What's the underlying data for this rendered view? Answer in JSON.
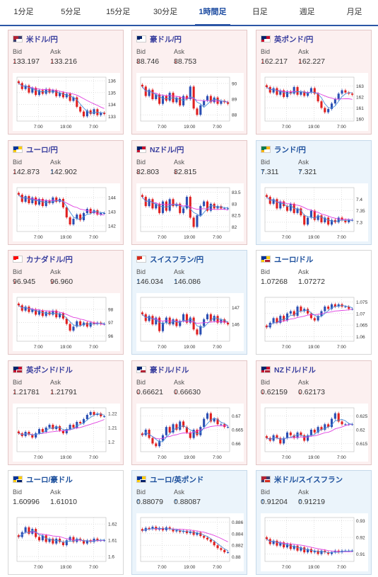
{
  "tabs": [
    "1分足",
    "5分足",
    "15分足",
    "30分足",
    "1時間足",
    "日足",
    "週足",
    "月足"
  ],
  "active_tab": 4,
  "labels": {
    "bid": "Bid",
    "ask": "Ask"
  },
  "colors": {
    "up_candle": "#2b4fb3",
    "down_candle": "#e02020",
    "ma_pink": "#e040e0",
    "ma_blue": "#4a90d9",
    "arrow_down": "#d8302f",
    "arrow_up": "#1f6fc6"
  },
  "pairs": [
    {
      "name": "米ドル/円",
      "theme": "pink",
      "flag": "us-jp-flag",
      "bid": "133.197",
      "ask": "133.216",
      "bid_dir": "down",
      "ask_dir": "down",
      "chart_data": {
        "type": "candlestick",
        "x_ticks": [
          "7:00",
          "19:00",
          "7:00"
        ],
        "y_ticks": [
          "136",
          "135",
          "134",
          "133"
        ],
        "ylim": [
          132.6,
          136.3
        ],
        "closes": [
          135.8,
          135.3,
          135.6,
          135.0,
          135.4,
          134.8,
          135.2,
          134.9,
          135.3,
          135.0,
          135.2,
          134.7,
          135.0,
          134.6,
          134.9,
          134.3,
          134.6,
          133.8,
          133.4,
          133.0,
          133.5,
          133.2,
          133.6,
          133.1,
          133.3,
          133.2
        ]
      }
    },
    {
      "name": "豪ドル/円",
      "theme": "pink",
      "flag": "au-jp-flag",
      "bid": "88.746",
      "ask": "88.753",
      "bid_dir": "down",
      "ask_dir": "down",
      "chart_data": {
        "type": "candlestick",
        "x_ticks": [
          "7:00",
          "19:00",
          "7:00"
        ],
        "y_ticks": [
          "90",
          "89",
          "88"
        ],
        "ylim": [
          87.6,
          90.4
        ],
        "closes": [
          89.8,
          89.2,
          89.6,
          89.0,
          89.3,
          88.7,
          89.2,
          88.9,
          89.4,
          88.8,
          89.1,
          88.6,
          89.2,
          89.0,
          89.8,
          88.4,
          88.0,
          88.6,
          88.9,
          89.2,
          88.8,
          89.1,
          88.7,
          88.9,
          88.8,
          88.7
        ]
      }
    },
    {
      "name": "英ポンド/円",
      "theme": "pink",
      "flag": "gb-jp-flag",
      "bid": "162.217",
      "ask": "162.227",
      "bid_dir": "down",
      "ask_dir": "down",
      "chart_data": {
        "type": "candlestick",
        "x_ticks": [
          "7:00",
          "19:00",
          "7:00"
        ],
        "y_ticks": [
          "163",
          "162",
          "161",
          "160"
        ],
        "ylim": [
          159.8,
          163.8
        ],
        "closes": [
          162.9,
          162.4,
          162.8,
          162.2,
          162.6,
          162.0,
          162.5,
          162.3,
          162.9,
          162.2,
          162.5,
          162.1,
          162.4,
          162.8,
          162.3,
          161.6,
          161.0,
          160.6,
          160.9,
          161.4,
          161.8,
          162.3,
          162.6,
          162.4,
          162.3,
          162.2
        ]
      }
    },
    {
      "name": "ユーロ/円",
      "theme": "pink",
      "flag": "eu-jp-flag",
      "bid": "142.873",
      "ask": "142.902",
      "bid_dir": "down",
      "ask_dir": "up",
      "chart_data": {
        "type": "candlestick",
        "x_ticks": [
          "7:00",
          "19:00",
          "7:00"
        ],
        "y_ticks": [
          "144",
          "143",
          "142"
        ],
        "ylim": [
          141.6,
          144.7
        ],
        "closes": [
          144.2,
          143.7,
          144.1,
          143.6,
          144.0,
          143.5,
          143.9,
          143.4,
          143.8,
          143.6,
          144.0,
          143.7,
          143.9,
          143.3,
          142.6,
          142.1,
          142.5,
          142.8,
          142.4,
          142.9,
          143.2,
          142.9,
          143.1,
          142.8,
          142.9,
          142.9
        ]
      }
    },
    {
      "name": "NZドル/円",
      "theme": "pink",
      "flag": "nz-jp-flag",
      "bid": "82.803",
      "ask": "82.815",
      "bid_dir": "down",
      "ask_dir": "down",
      "chart_data": {
        "type": "candlestick",
        "x_ticks": [
          "7:00",
          "19:00",
          "7:00"
        ],
        "y_ticks": [
          "83.5",
          "83",
          "82.5",
          "82"
        ],
        "ylim": [
          81.8,
          83.7
        ],
        "closes": [
          83.3,
          82.9,
          83.2,
          82.8,
          83.0,
          82.6,
          83.1,
          82.7,
          83.2,
          82.9,
          83.0,
          82.6,
          82.8,
          83.3,
          82.4,
          82.0,
          82.5,
          82.9,
          83.1,
          82.7,
          83.0,
          82.8,
          82.9,
          82.8,
          82.8,
          82.8
        ]
      }
    },
    {
      "name": "ランド/円",
      "theme": "blue",
      "flag": "za-jp-flag",
      "bid": "7.311",
      "ask": "7.321",
      "bid_dir": "up",
      "ask_dir": "up",
      "chart_data": {
        "type": "candlestick",
        "x_ticks": [
          "7:00",
          "19:00",
          "7:00"
        ],
        "y_ticks": [
          "7.4",
          "7.35",
          "7.3"
        ],
        "ylim": [
          7.26,
          7.45
        ],
        "closes": [
          7.41,
          7.38,
          7.4,
          7.36,
          7.39,
          7.37,
          7.35,
          7.38,
          7.34,
          7.36,
          7.33,
          7.29,
          7.32,
          7.35,
          7.31,
          7.33,
          7.3,
          7.32,
          7.29,
          7.31,
          7.3,
          7.32,
          7.31,
          7.3,
          7.31,
          7.31
        ]
      }
    },
    {
      "name": "カナダドル/円",
      "theme": "pink",
      "flag": "ca-jp-flag",
      "bid": "96.945",
      "ask": "96.960",
      "bid_dir": "down",
      "ask_dir": "down",
      "chart_data": {
        "type": "candlestick",
        "x_ticks": [
          "7:00",
          "19:00",
          "7:00"
        ],
        "y_ticks": [
          "98",
          "97",
          "96"
        ],
        "ylim": [
          95.6,
          98.9
        ],
        "closes": [
          98.3,
          97.9,
          98.2,
          97.8,
          98.0,
          97.6,
          97.9,
          97.5,
          97.8,
          97.6,
          97.9,
          97.4,
          97.7,
          97.3,
          96.9,
          96.4,
          96.7,
          97.1,
          96.8,
          97.0,
          96.7,
          97.0,
          96.9,
          97.0,
          96.9,
          96.9
        ]
      }
    },
    {
      "name": "スイスフラン/円",
      "theme": "blue",
      "flag": "ch-jp-flag",
      "bid": "146.034",
      "ask": "146.086",
      "bid_dir": "up",
      "ask_dir": "up",
      "chart_data": {
        "type": "candlestick",
        "x_ticks": [
          "7:00",
          "19:00",
          "7:00"
        ],
        "y_ticks": [
          "147",
          "146"
        ],
        "ylim": [
          145.0,
          147.6
        ],
        "closes": [
          146.6,
          146.2,
          146.5,
          146.0,
          146.4,
          145.6,
          146.1,
          146.4,
          146.0,
          146.3,
          145.9,
          146.2,
          146.6,
          146.1,
          146.4,
          145.7,
          145.4,
          145.9,
          146.3,
          146.6,
          146.2,
          146.5,
          146.1,
          146.3,
          146.1,
          146.0
        ]
      }
    },
    {
      "name": "ユーロ/ドル",
      "theme": "white",
      "flag": "eu-us-flag",
      "bid": "1.07268",
      "ask": "1.07272",
      "bid_dir": "none",
      "ask_dir": "none",
      "chart_data": {
        "type": "candlestick",
        "x_ticks": [
          "7:00",
          "19:00",
          "7:00"
        ],
        "y_ticks": [
          "1.075",
          "1.07",
          "1.065",
          "1.06"
        ],
        "ylim": [
          1.058,
          1.077
        ],
        "closes": [
          1.064,
          1.066,
          1.068,
          1.066,
          1.069,
          1.067,
          1.07,
          1.071,
          1.069,
          1.073,
          1.071,
          1.072,
          1.07,
          1.068,
          1.067,
          1.069,
          1.071,
          1.073,
          1.072,
          1.074,
          1.073,
          1.074,
          1.073,
          1.073,
          1.072,
          1.072
        ]
      }
    },
    {
      "name": "英ポンド/ドル",
      "theme": "pink",
      "flag": "gb-us-flag",
      "bid": "1.21781",
      "ask": "1.21791",
      "bid_dir": "down",
      "ask_dir": "down",
      "chart_data": {
        "type": "candlestick",
        "x_ticks": [
          "7:00",
          "19:00",
          "7:00"
        ],
        "y_ticks": [
          "1.22",
          "1.21",
          "1.2"
        ],
        "ylim": [
          1.193,
          1.224
        ],
        "closes": [
          1.206,
          1.204,
          1.207,
          1.205,
          1.203,
          1.206,
          1.209,
          1.207,
          1.21,
          1.212,
          1.209,
          1.211,
          1.208,
          1.206,
          1.209,
          1.212,
          1.21,
          1.214,
          1.213,
          1.216,
          1.219,
          1.221,
          1.219,
          1.22,
          1.218,
          1.218
        ]
      }
    },
    {
      "name": "豪ドル/ドル",
      "theme": "pink",
      "flag": "au-us-flag",
      "bid": "0.66621",
      "ask": "0.66630",
      "bid_dir": "down",
      "ask_dir": "down",
      "chart_data": {
        "type": "candlestick",
        "x_ticks": [
          "7:00",
          "19:00",
          "7:00"
        ],
        "y_ticks": [
          "0.67",
          "0.665",
          "0.66"
        ],
        "ylim": [
          0.657,
          0.673
        ],
        "closes": [
          0.663,
          0.665,
          0.662,
          0.66,
          0.659,
          0.661,
          0.663,
          0.666,
          0.664,
          0.667,
          0.665,
          0.668,
          0.666,
          0.664,
          0.662,
          0.665,
          0.663,
          0.666,
          0.669,
          0.671,
          0.668,
          0.669,
          0.667,
          0.667,
          0.666,
          0.666
        ]
      }
    },
    {
      "name": "NZドル/ドル",
      "theme": "pink",
      "flag": "nz-us-flag",
      "bid": "0.62159",
      "ask": "0.62173",
      "bid_dir": "down",
      "ask_dir": "down",
      "chart_data": {
        "type": "candlestick",
        "x_ticks": [
          "7:00",
          "19:00",
          "7:00"
        ],
        "y_ticks": [
          "0.625",
          "0.62",
          "0.615"
        ],
        "ylim": [
          0.612,
          0.628
        ],
        "closes": [
          0.617,
          0.616,
          0.618,
          0.617,
          0.615,
          0.617,
          0.619,
          0.618,
          0.617,
          0.619,
          0.618,
          0.616,
          0.618,
          0.62,
          0.619,
          0.621,
          0.62,
          0.622,
          0.621,
          0.624,
          0.626,
          0.623,
          0.622,
          0.622,
          0.622,
          0.622
        ]
      }
    },
    {
      "name": "ユーロ/豪ドル",
      "theme": "white",
      "flag": "eu-au-flag",
      "bid": "1.60996",
      "ask": "1.61010",
      "bid_dir": "none",
      "ask_dir": "none",
      "chart_data": {
        "type": "candlestick",
        "x_ticks": [
          "7:00",
          "19:00",
          "7:00"
        ],
        "y_ticks": [
          "1.62",
          "1.61",
          "1.6"
        ],
        "ylim": [
          1.597,
          1.624
        ],
        "closes": [
          1.612,
          1.615,
          1.618,
          1.614,
          1.617,
          1.612,
          1.61,
          1.613,
          1.609,
          1.611,
          1.608,
          1.611,
          1.609,
          1.607,
          1.61,
          1.612,
          1.609,
          1.611,
          1.61,
          1.608,
          1.61,
          1.609,
          1.611,
          1.61,
          1.61,
          1.61
        ]
      }
    },
    {
      "name": "ユーロ/英ポンド",
      "theme": "blue",
      "flag": "eu-gb-flag",
      "bid": "0.88079",
      "ask": "0.88087",
      "bid_dir": "up",
      "ask_dir": "up",
      "chart_data": {
        "type": "candlestick",
        "x_ticks": [
          "7:00",
          "19:00",
          "7:00"
        ],
        "y_ticks": [
          "0.886",
          "0.884",
          "0.882",
          "0.88"
        ],
        "ylim": [
          0.8792,
          0.8868
        ],
        "closes": [
          0.8845,
          0.885,
          0.8848,
          0.8852,
          0.8847,
          0.885,
          0.8846,
          0.8851,
          0.8848,
          0.8844,
          0.8846,
          0.8843,
          0.8845,
          0.8841,
          0.8844,
          0.8838,
          0.8842,
          0.8836,
          0.8833,
          0.883,
          0.8826,
          0.882,
          0.8815,
          0.8812,
          0.8808,
          0.8808
        ]
      }
    },
    {
      "name": "米ドル/スイスフラン",
      "theme": "blue",
      "flag": "us-ch-flag",
      "bid": "0.91204",
      "ask": "0.91219",
      "bid_dir": "up",
      "ask_dir": "up",
      "chart_data": {
        "type": "candlestick",
        "x_ticks": [
          "7:00",
          "19:00",
          "7:00"
        ],
        "y_ticks": [
          "0.93",
          "0.92",
          "0.91"
        ],
        "ylim": [
          0.9055,
          0.932
        ],
        "closes": [
          0.919,
          0.916,
          0.918,
          0.915,
          0.917,
          0.914,
          0.916,
          0.913,
          0.915,
          0.912,
          0.914,
          0.911,
          0.913,
          0.911,
          0.912,
          0.91,
          0.912,
          0.911,
          0.91,
          0.911,
          0.912,
          0.911,
          0.912,
          0.912,
          0.912,
          0.912
        ]
      }
    }
  ]
}
